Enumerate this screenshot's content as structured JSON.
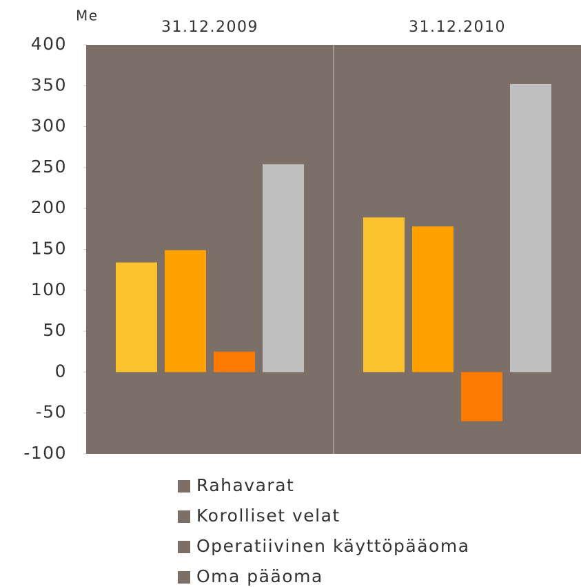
{
  "chart_data": {
    "type": "bar",
    "unit_label": "Me",
    "categories": [
      "31.12.2009",
      "31.12.2010"
    ],
    "series": [
      {
        "name": "Rahavarat",
        "color": "#fcc22d",
        "values": [
          134,
          189
        ]
      },
      {
        "name": "Korolliset velat",
        "color": "#ffa200",
        "values": [
          149,
          178
        ]
      },
      {
        "name": "Operatiivinen käyttöpääoma",
        "color": "#ff7a00",
        "values": [
          25,
          -60
        ]
      },
      {
        "name": "Oma pääoma",
        "color": "#c0c0c0",
        "values": [
          254,
          352
        ]
      }
    ],
    "ylim": [
      -100,
      400
    ],
    "yticks": [
      -100,
      -50,
      0,
      50,
      100,
      150,
      200,
      250,
      300,
      350,
      400
    ],
    "plot_background": "#7b6f67",
    "legend_marker_color": "#7b6f67",
    "legend": "bottom"
  }
}
